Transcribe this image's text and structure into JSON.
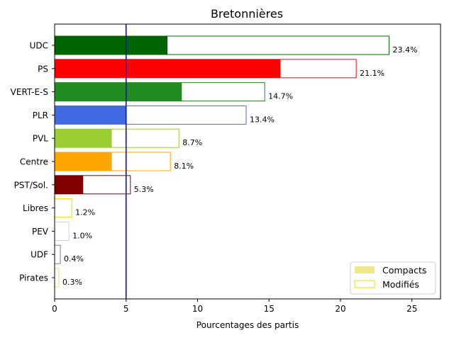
{
  "chart_data": {
    "type": "bar",
    "orientation": "horizontal",
    "title": "Bretonnières",
    "xlabel": "Pourcentages des partis",
    "ylabel": "",
    "xlim": [
      0,
      27
    ],
    "xticks": [
      0,
      5,
      10,
      15,
      20,
      25
    ],
    "reference_line": {
      "x": 5,
      "color": "#0000cd"
    },
    "categories": [
      "UDC",
      "PS",
      "VERT-E-S",
      "PLR",
      "PVL",
      "Centre",
      "PST/Sol.",
      "Libres",
      "PEV",
      "UDF",
      "Pirates"
    ],
    "colors": [
      "#006400",
      "#ff0000",
      "#228b22",
      "#4169e1",
      "#9acd32",
      "#ffa500",
      "#800000",
      "#ffd700",
      "#d3d3d3",
      "#808080",
      "#ffdd44"
    ],
    "series": [
      {
        "name": "Compacts",
        "values": [
          7.9,
          15.8,
          8.9,
          5.0,
          4.0,
          4.0,
          2.0,
          0,
          0,
          0,
          0
        ]
      },
      {
        "name": "Modifiés",
        "values": [
          23.4,
          21.1,
          14.7,
          13.4,
          8.7,
          8.1,
          5.3,
          1.2,
          1.0,
          0.4,
          0.3
        ]
      }
    ],
    "data_labels": [
      "23.4%",
      "21.1%",
      "14.7%",
      "13.4%",
      "8.7%",
      "8.1%",
      "5.3%",
      "1.2%",
      "1.0%",
      "0.4%",
      "0.3%"
    ],
    "legend": {
      "position": "bottom-right",
      "entries": [
        {
          "label": "Compacts",
          "color": "#f0e68c",
          "style": "filled"
        },
        {
          "label": "Modifiés",
          "color": "#ffd700",
          "style": "outline"
        }
      ]
    }
  }
}
